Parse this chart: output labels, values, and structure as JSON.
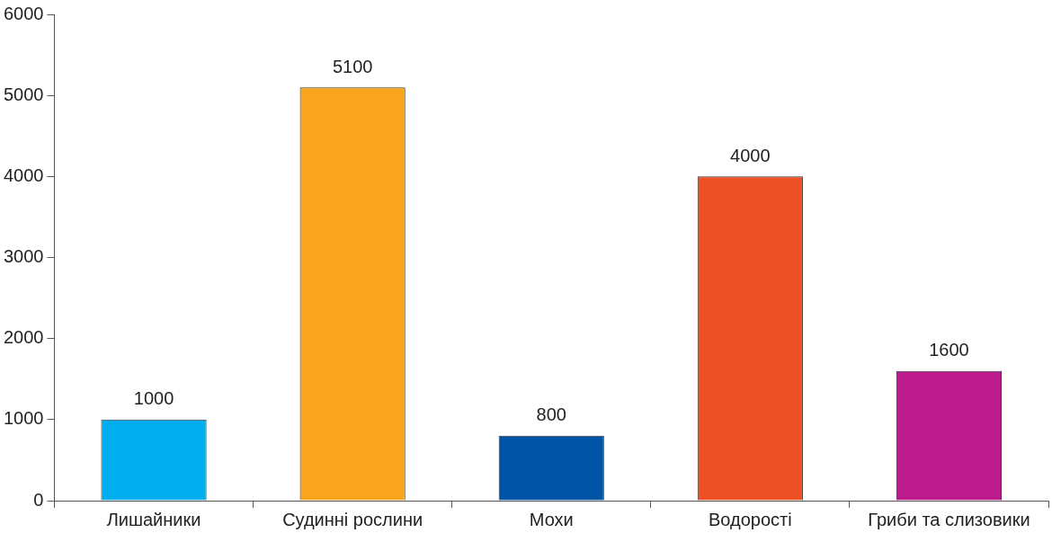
{
  "chart_data": {
    "type": "bar",
    "categories": [
      "Лишайники",
      "Судинні рослини",
      "Мохи",
      "Водорості",
      "Гриби та слизовики"
    ],
    "values": [
      1000,
      5100,
      800,
      4000,
      1600
    ],
    "colors": [
      "#00aeef",
      "#f8a51d",
      "#0054a6",
      "#ef5126",
      "#bc1b8d"
    ],
    "ylim": [
      0,
      6000
    ],
    "yticks": [
      0,
      1000,
      2000,
      3000,
      4000,
      5000,
      6000
    ],
    "grid": false,
    "legend": false,
    "data_labels": true
  }
}
